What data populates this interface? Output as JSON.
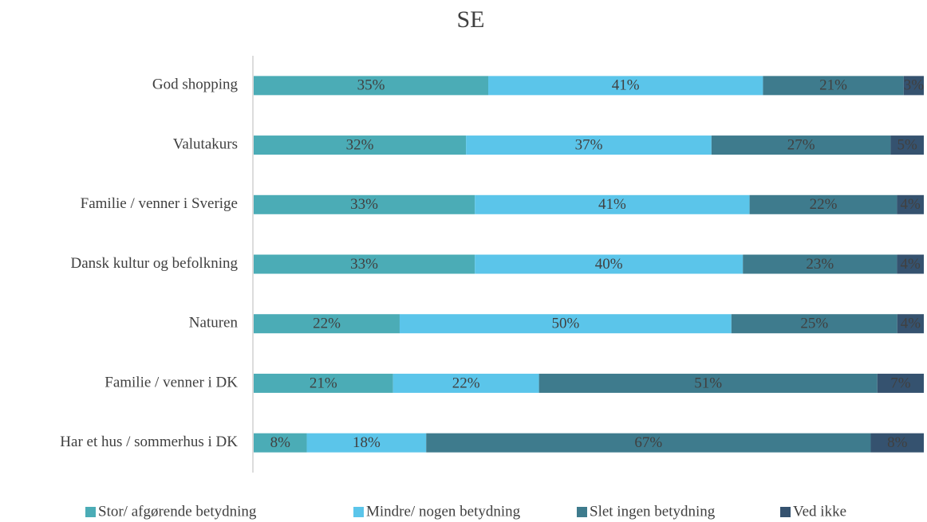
{
  "chart_data": {
    "type": "stacked-bar-100",
    "title": "SE",
    "categories": [
      "God shopping",
      "Valutakurs",
      "Familie / venner i Sverige",
      "Dansk kultur og befolkning",
      "Naturen",
      "Familie / venner i DK",
      "Har et hus / sommerhus i DK"
    ],
    "series": [
      {
        "name": "Stor/ afgørende betydning",
        "color": "#4bacb6",
        "values": [
          35,
          32,
          33,
          33,
          22,
          21,
          8
        ],
        "value_labels": [
          "35%",
          "32%",
          "33%",
          "33%",
          "22%",
          "21%",
          "8%"
        ]
      },
      {
        "name": "Mindre/ nogen betydning",
        "color": "#5bc5ea",
        "values": [
          41,
          37,
          41,
          40,
          50,
          22,
          18
        ],
        "value_labels": [
          "41%",
          "37%",
          "41%",
          "40%",
          "50%",
          "22%",
          "18%"
        ]
      },
      {
        "name": "Slet ingen betydning",
        "color": "#3e7b8d",
        "values": [
          21,
          27,
          22,
          23,
          25,
          51,
          67
        ],
        "value_labels": [
          "21%",
          "27%",
          "22%",
          "23%",
          "25%",
          "51%",
          "67%"
        ]
      },
      {
        "name": "Ved ikke",
        "color": "#35526f",
        "values": [
          3,
          5,
          4,
          4,
          4,
          7,
          8
        ],
        "value_labels": [
          "3%",
          "5%",
          "4%",
          "4%",
          "4%",
          "7%",
          "8%"
        ]
      }
    ]
  }
}
